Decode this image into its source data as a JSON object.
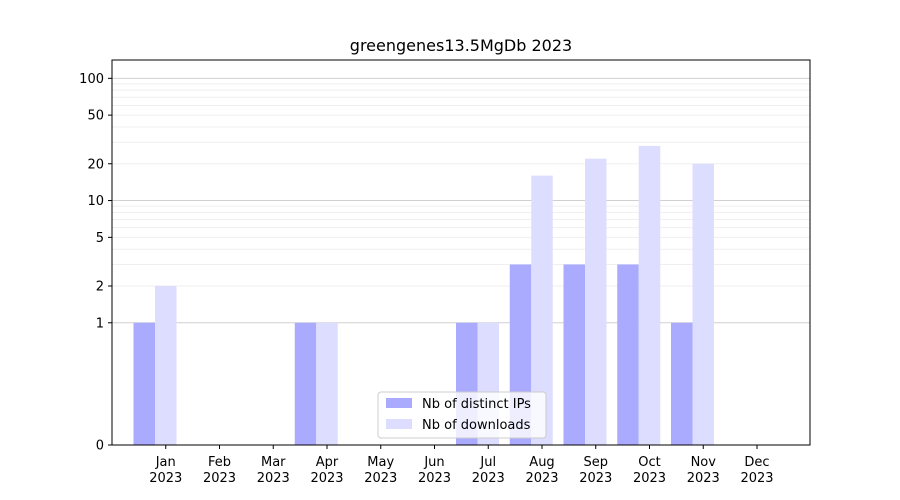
{
  "chart_data": {
    "type": "bar",
    "title": "greengenes13.5MgDb 2023",
    "xlabel": "",
    "ylabel": "",
    "yscale": "symlog",
    "grid": true,
    "legend_position": "bottom-center",
    "categories": [
      {
        "month": "Jan",
        "year": "2023"
      },
      {
        "month": "Feb",
        "year": "2023"
      },
      {
        "month": "Mar",
        "year": "2023"
      },
      {
        "month": "Apr",
        "year": "2023"
      },
      {
        "month": "May",
        "year": "2023"
      },
      {
        "month": "Jun",
        "year": "2023"
      },
      {
        "month": "Jul",
        "year": "2023"
      },
      {
        "month": "Aug",
        "year": "2023"
      },
      {
        "month": "Sep",
        "year": "2023"
      },
      {
        "month": "Oct",
        "year": "2023"
      },
      {
        "month": "Nov",
        "year": "2023"
      },
      {
        "month": "Dec",
        "year": "2023"
      }
    ],
    "yticks": [
      "0",
      "1",
      "2",
      "5",
      "10",
      "20",
      "50",
      "100"
    ],
    "series": [
      {
        "name": "Nb of distinct IPs",
        "color": "#aaaaff",
        "values": [
          1,
          0,
          0,
          1,
          0,
          0,
          1,
          3,
          3,
          3,
          1,
          0
        ]
      },
      {
        "name": "Nb of downloads",
        "color": "#ddddff",
        "values": [
          2,
          0,
          0,
          1,
          0,
          0,
          1,
          16,
          22,
          28,
          20,
          0
        ]
      }
    ]
  }
}
